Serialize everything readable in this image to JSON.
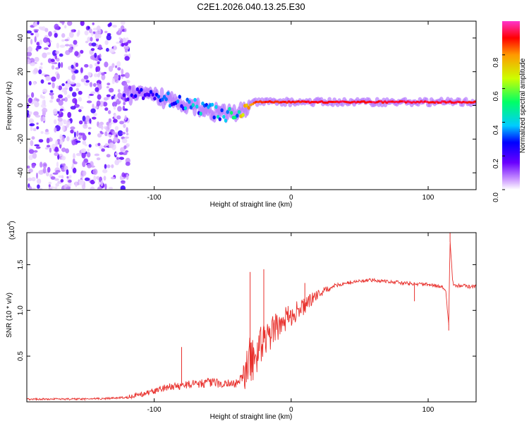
{
  "title": "C2E1.2026.040.13.25.E30",
  "colors": {
    "trace": "#e8302c",
    "axis": "#000000",
    "colormap": [
      "#ffffff",
      "#cc99ff",
      "#6a00ff",
      "#0000ff",
      "#00ccff",
      "#00ff66",
      "#ccff00",
      "#ff9900",
      "#ff0000",
      "#ff33cc"
    ]
  },
  "chart_data": [
    {
      "type": "heatmap",
      "name": "spectrogram",
      "xlabel": "Height of straight line (km)",
      "ylabel": "Frequency (Hz)",
      "xlim": [
        -193,
        135
      ],
      "ylim": [
        -50,
        50
      ],
      "xticks": [
        -100,
        0,
        100
      ],
      "xtick_labels": [
        "-100",
        "0",
        "100"
      ],
      "yticks": [
        -40,
        -20,
        0,
        20,
        40
      ],
      "ytick_labels": [
        "-40",
        "-20",
        "0",
        "20",
        "40"
      ],
      "colorbar": {
        "label": "Normalized spectral amplitude",
        "range": [
          0,
          1
        ],
        "ticks": [
          0.0,
          0.2,
          0.4,
          0.6,
          0.8
        ],
        "tick_labels": [
          "0.0",
          "0.2",
          "0.4",
          "0.6",
          "0.8"
        ]
      },
      "ridge": [
        {
          "x": -120,
          "f": 7,
          "amp": 0.2
        },
        {
          "x": -110,
          "f": 6,
          "amp": 0.25
        },
        {
          "x": -100,
          "f": 5,
          "amp": 0.3
        },
        {
          "x": -90,
          "f": 4,
          "amp": 0.33
        },
        {
          "x": -80,
          "f": 2,
          "amp": 0.35
        },
        {
          "x": -70,
          "f": 0,
          "amp": 0.38
        },
        {
          "x": -60,
          "f": -3,
          "amp": 0.4
        },
        {
          "x": -50,
          "f": -5,
          "amp": 0.42
        },
        {
          "x": -40,
          "f": -5,
          "amp": 0.55
        },
        {
          "x": -35,
          "f": -2,
          "amp": 0.7
        },
        {
          "x": -30,
          "f": 0,
          "amp": 0.8
        },
        {
          "x": -25,
          "f": 2,
          "amp": 0.9
        },
        {
          "x": 0,
          "f": 2,
          "amp": 0.92
        },
        {
          "x": 50,
          "f": 2,
          "amp": 0.95
        },
        {
          "x": 100,
          "f": 2,
          "amp": 0.95
        },
        {
          "x": 135,
          "f": 2,
          "amp": 0.95
        }
      ]
    },
    {
      "type": "line",
      "name": "snr",
      "xlabel": "Height of straight line (km)",
      "ylabel": "SNR (10 * v/v)",
      "scale_label": "(x10",
      "scale_exponent": "4",
      "xlim": [
        -193,
        135
      ],
      "ylim": [
        0,
        1.85
      ],
      "xticks": [
        -100,
        0,
        100
      ],
      "xtick_labels": [
        "-100",
        "0",
        "100"
      ],
      "yticks": [
        0.5,
        1.0,
        1.5
      ],
      "ytick_labels": [
        "0.5",
        "1.0",
        "1.5"
      ],
      "series": [
        {
          "name": "SNR",
          "x": [
            -193,
            -170,
            -150,
            -130,
            -120,
            -110,
            -100,
            -90,
            -80,
            -70,
            -60,
            -50,
            -40,
            -35,
            -30,
            -25,
            -20,
            -15,
            -10,
            -5,
            0,
            5,
            10,
            15,
            20,
            25,
            30,
            40,
            50,
            60,
            70,
            80,
            90,
            100,
            105,
            110,
            113,
            115,
            116,
            118,
            120,
            125,
            130,
            135
          ],
          "y": [
            0.03,
            0.03,
            0.03,
            0.04,
            0.05,
            0.08,
            0.12,
            0.16,
            0.18,
            0.2,
            0.21,
            0.2,
            0.2,
            0.28,
            0.45,
            0.55,
            0.65,
            0.75,
            0.82,
            0.9,
            0.95,
            1.0,
            1.05,
            1.12,
            1.18,
            1.22,
            1.26,
            1.3,
            1.32,
            1.33,
            1.32,
            1.3,
            1.29,
            1.28,
            1.27,
            1.26,
            1.2,
            0.85,
            1.75,
            1.3,
            1.27,
            1.27,
            1.26,
            1.26
          ]
        }
      ],
      "spikes": [
        {
          "x": -80,
          "y": 0.6
        },
        {
          "x": -30,
          "y": 1.42
        },
        {
          "x": -20,
          "y": 1.45
        },
        {
          "x": 10,
          "y": 1.3
        },
        {
          "x": 90,
          "y": 1.1
        },
        {
          "x": 115,
          "y": 0.78
        },
        {
          "x": 116,
          "y": 1.85
        }
      ]
    }
  ]
}
